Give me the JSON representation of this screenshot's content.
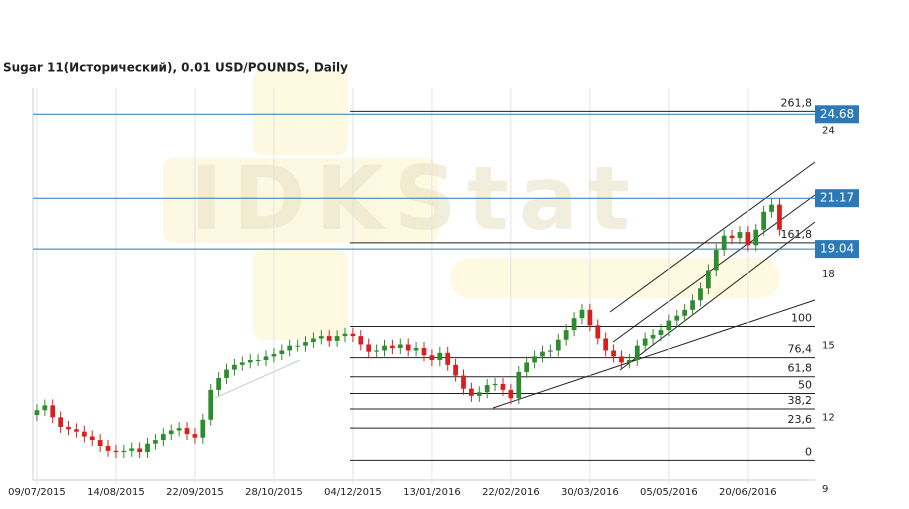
{
  "chart_data": {
    "type": "candlestick",
    "title": "Sugar 11(Исторический), 0.01 USD/POUNDS, Daily",
    "watermark": "IDKStat",
    "up_color": "#2e8b2e",
    "down_color": "#d62020",
    "xlim": [
      -0.5,
      98.5
    ],
    "xticks": [
      {
        "value": 0,
        "label": "09/07/2015"
      },
      {
        "value": 10,
        "label": "14/08/2015"
      },
      {
        "value": 20,
        "label": "22/09/2015"
      },
      {
        "value": 30,
        "label": "28/10/2015"
      },
      {
        "value": 40,
        "label": "04/12/2015"
      },
      {
        "value": 50,
        "label": "13/01/2016"
      },
      {
        "value": 60,
        "label": "22/02/2016"
      },
      {
        "value": 70,
        "label": "30/03/2016"
      },
      {
        "value": 80,
        "label": "05/05/2016"
      },
      {
        "value": 90,
        "label": "20/06/2016"
      }
    ],
    "ylim": [
      9.38,
      25.78
    ],
    "yticks": [
      9,
      12,
      15,
      18,
      24
    ],
    "price_lines": [
      24.68,
      21.17,
      19.04
    ],
    "price_line_color": "#2a7ab8",
    "fib_levels": [
      {
        "price": 24.8,
        "label": "261,8"
      },
      {
        "price": 19.3,
        "label": "161,8"
      },
      {
        "price": 15.8,
        "label": "100"
      },
      {
        "price": 14.5,
        "label": "76,4"
      },
      {
        "price": 13.7,
        "label": "61,8"
      },
      {
        "price": 13.0,
        "label": "50"
      },
      {
        "price": 12.35,
        "label": "38,2"
      },
      {
        "price": 11.55,
        "label": "23,6"
      },
      {
        "price": 10.2,
        "label": "0"
      }
    ],
    "candles": [
      [
        12.1,
        12.55,
        11.85,
        12.3
      ],
      [
        12.3,
        12.75,
        12.05,
        12.5
      ],
      [
        12.5,
        12.75,
        11.75,
        12.0
      ],
      [
        12.0,
        12.25,
        11.35,
        11.6
      ],
      [
        11.6,
        11.85,
        11.25,
        11.5
      ],
      [
        11.5,
        11.75,
        11.15,
        11.4
      ],
      [
        11.4,
        11.65,
        10.95,
        11.2
      ],
      [
        11.2,
        11.45,
        10.8,
        11.05
      ],
      [
        11.05,
        11.3,
        10.55,
        10.8
      ],
      [
        10.8,
        11.05,
        10.35,
        10.6
      ],
      [
        10.6,
        10.85,
        10.3,
        10.55
      ],
      [
        10.55,
        10.85,
        10.3,
        10.6
      ],
      [
        10.6,
        10.95,
        10.35,
        10.7
      ],
      [
        10.7,
        10.95,
        10.3,
        10.55
      ],
      [
        10.55,
        11.15,
        10.3,
        10.9
      ],
      [
        10.9,
        11.3,
        10.65,
        11.05
      ],
      [
        11.05,
        11.55,
        10.8,
        11.3
      ],
      [
        11.3,
        11.7,
        11.05,
        11.45
      ],
      [
        11.45,
        11.8,
        11.2,
        11.55
      ],
      [
        11.55,
        11.8,
        11.05,
        11.3
      ],
      [
        11.3,
        11.55,
        10.9,
        11.15
      ],
      [
        11.15,
        12.15,
        10.9,
        11.9
      ],
      [
        11.9,
        13.4,
        11.65,
        13.15
      ],
      [
        13.15,
        13.9,
        12.9,
        13.65
      ],
      [
        13.65,
        14.25,
        13.4,
        14.0
      ],
      [
        14.0,
        14.45,
        13.75,
        14.2
      ],
      [
        14.2,
        14.55,
        13.95,
        14.3
      ],
      [
        14.3,
        14.65,
        14.05,
        14.4
      ],
      [
        14.4,
        14.65,
        14.15,
        14.4
      ],
      [
        14.4,
        14.8,
        14.15,
        14.55
      ],
      [
        14.55,
        14.9,
        14.3,
        14.65
      ],
      [
        14.65,
        15.05,
        14.4,
        14.8
      ],
      [
        14.8,
        15.25,
        14.55,
        15.0
      ],
      [
        15.0,
        15.25,
        14.75,
        15.0
      ],
      [
        15.0,
        15.4,
        14.75,
        15.15
      ],
      [
        15.15,
        15.55,
        14.9,
        15.3
      ],
      [
        15.3,
        15.65,
        15.05,
        15.4
      ],
      [
        15.4,
        15.65,
        14.95,
        15.2
      ],
      [
        15.2,
        15.65,
        14.95,
        15.4
      ],
      [
        15.4,
        15.75,
        15.15,
        15.5
      ],
      [
        15.5,
        15.75,
        15.15,
        15.4
      ],
      [
        15.4,
        15.65,
        14.8,
        15.05
      ],
      [
        15.05,
        15.3,
        14.5,
        14.75
      ],
      [
        14.75,
        15.05,
        14.5,
        14.8
      ],
      [
        14.8,
        15.25,
        14.55,
        15.0
      ],
      [
        15.0,
        15.25,
        14.65,
        14.9
      ],
      [
        14.9,
        15.3,
        14.65,
        15.05
      ],
      [
        15.05,
        15.3,
        14.55,
        14.8
      ],
      [
        14.8,
        15.15,
        14.55,
        14.9
      ],
      [
        14.9,
        15.15,
        14.35,
        14.6
      ],
      [
        14.6,
        14.85,
        14.15,
        14.4
      ],
      [
        14.4,
        14.95,
        14.15,
        14.7
      ],
      [
        14.7,
        14.95,
        13.95,
        14.2
      ],
      [
        14.2,
        14.45,
        13.5,
        13.75
      ],
      [
        13.75,
        14.0,
        12.95,
        13.2
      ],
      [
        13.2,
        13.45,
        12.65,
        12.9
      ],
      [
        12.9,
        13.3,
        12.65,
        13.05
      ],
      [
        13.05,
        13.6,
        12.8,
        13.35
      ],
      [
        13.35,
        13.65,
        13.1,
        13.4
      ],
      [
        13.4,
        13.65,
        12.9,
        13.15
      ],
      [
        13.15,
        13.4,
        12.55,
        12.8
      ],
      [
        12.8,
        14.15,
        12.55,
        13.9
      ],
      [
        13.9,
        14.55,
        13.65,
        14.3
      ],
      [
        14.3,
        14.8,
        14.05,
        14.55
      ],
      [
        14.55,
        15.0,
        14.3,
        14.75
      ],
      [
        14.75,
        15.05,
        14.5,
        14.8
      ],
      [
        14.8,
        15.5,
        14.55,
        15.25
      ],
      [
        15.25,
        15.9,
        15.0,
        15.65
      ],
      [
        15.65,
        16.4,
        15.4,
        16.15
      ],
      [
        16.15,
        16.75,
        15.9,
        16.5
      ],
      [
        16.5,
        16.75,
        15.6,
        15.85
      ],
      [
        15.85,
        16.1,
        15.05,
        15.3
      ],
      [
        15.3,
        15.55,
        14.55,
        14.8
      ],
      [
        14.8,
        15.05,
        14.3,
        14.55
      ],
      [
        14.55,
        14.8,
        14.05,
        14.3
      ],
      [
        14.3,
        14.65,
        14.05,
        14.4
      ],
      [
        14.4,
        15.25,
        14.15,
        15.0
      ],
      [
        15.0,
        15.55,
        14.75,
        15.3
      ],
      [
        15.3,
        15.7,
        15.05,
        15.45
      ],
      [
        15.45,
        15.9,
        15.2,
        15.65
      ],
      [
        15.65,
        16.3,
        15.4,
        16.05
      ],
      [
        16.05,
        16.5,
        15.8,
        16.25
      ],
      [
        16.25,
        16.75,
        16.0,
        16.5
      ],
      [
        16.5,
        17.15,
        16.25,
        16.9
      ],
      [
        16.9,
        17.65,
        16.65,
        17.4
      ],
      [
        17.4,
        18.4,
        17.15,
        18.15
      ],
      [
        18.15,
        19.25,
        17.9,
        19.0
      ],
      [
        19.0,
        19.85,
        18.75,
        19.6
      ],
      [
        19.6,
        19.85,
        19.25,
        19.5
      ],
      [
        19.5,
        20.0,
        19.25,
        19.75
      ],
      [
        19.75,
        20.0,
        18.95,
        19.2
      ],
      [
        19.2,
        20.1,
        18.95,
        19.85
      ],
      [
        19.85,
        20.85,
        19.6,
        20.6
      ],
      [
        20.6,
        21.15,
        20.35,
        20.9
      ],
      [
        20.9,
        21.15,
        19.6,
        19.85
      ]
    ]
  }
}
